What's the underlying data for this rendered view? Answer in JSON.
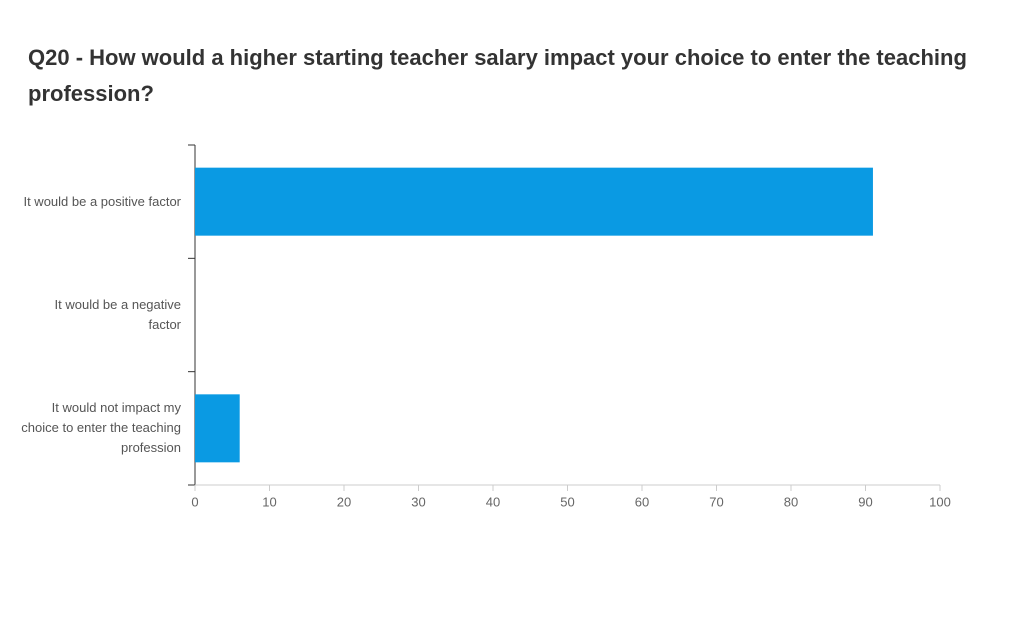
{
  "chart_data": {
    "type": "bar",
    "orientation": "horizontal",
    "title": "Q20 - How would a higher starting teacher salary impact your choice to enter the teaching profession?",
    "categories": [
      "It would be a positive factor",
      "It would be a negative factor",
      "It would not impact my choice to enter the teaching profession"
    ],
    "values": [
      91,
      0,
      6
    ],
    "color": "#0a9ae3",
    "xlim": [
      0,
      100
    ],
    "xticks": [
      0,
      10,
      20,
      30,
      40,
      50,
      60,
      70,
      80,
      90,
      100
    ],
    "grid": false
  }
}
